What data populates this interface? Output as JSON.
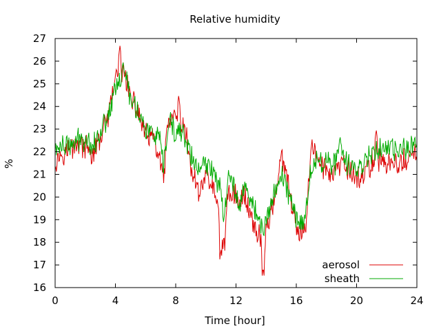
{
  "chart_data": {
    "type": "line",
    "title": "Relative humidity",
    "xlabel": "Time [hour]",
    "ylabel": "%",
    "xlim": [
      0,
      24
    ],
    "ylim": [
      16,
      27
    ],
    "xticks": [
      0,
      4,
      8,
      12,
      16,
      20,
      24
    ],
    "xtick_labels": [
      "0",
      "4",
      "8",
      "12",
      "16",
      "20",
      "24"
    ],
    "yticks": [
      16,
      17,
      18,
      19,
      20,
      21,
      22,
      23,
      24,
      25,
      26,
      27
    ],
    "ytick_labels": [
      "16",
      "17",
      "18",
      "19",
      "20",
      "21",
      "22",
      "23",
      "24",
      "25",
      "26",
      "27"
    ],
    "grid": false,
    "legend_position": "bottom-right",
    "series": [
      {
        "name": "aerosol",
        "color": "#dd0000",
        "x": [
          0,
          0.5,
          1,
          1.5,
          2,
          2.5,
          3,
          3.5,
          3.8,
          4,
          4.2,
          4.4,
          4.5,
          4.6,
          4.8,
          5,
          5.5,
          6,
          6.5,
          7,
          7.2,
          7.4,
          7.6,
          8,
          8.3,
          8.7,
          9,
          9.5,
          10,
          10.5,
          11,
          11.2,
          11.5,
          12,
          12.2,
          12.5,
          13,
          13.3,
          13.6,
          13.8,
          14,
          14.5,
          15,
          15.5,
          15.8,
          16.2,
          16.6,
          17,
          17.5,
          18,
          18.5,
          19,
          19.5,
          20,
          20.5,
          21,
          21.5,
          22,
          22.5,
          23,
          23.5,
          24
        ],
        "y": [
          21.6,
          22,
          22.1,
          22.4,
          22.2,
          21.8,
          22.6,
          23.5,
          24.4,
          25.4,
          25.2,
          25,
          25.8,
          25.6,
          25,
          24.3,
          23.8,
          22.7,
          22.6,
          21.5,
          20.5,
          22.9,
          23.4,
          23.4,
          23.2,
          22.7,
          21.3,
          20.2,
          21,
          20.4,
          18.8,
          17.7,
          20.3,
          20.1,
          19.5,
          20.2,
          19.2,
          18.5,
          18.3,
          17,
          18.5,
          19.8,
          21.7,
          20.5,
          19.2,
          18.2,
          18.6,
          22.4,
          21.5,
          21.2,
          21,
          21.4,
          21.2,
          20.8,
          21,
          21.5,
          21.7,
          21.5,
          21.4,
          21.5,
          21.7,
          22
        ],
        "peaks": [
          {
            "x": 4.3,
            "y": 26.7
          },
          {
            "x": 8.2,
            "y": 24.5
          },
          {
            "x": 11,
            "y": 17.7
          },
          {
            "x": 13.8,
            "y": 16.9
          },
          {
            "x": 21.3,
            "y": 23
          }
        ]
      },
      {
        "name": "sheath",
        "color": "#00aa00",
        "x": [
          0,
          0.5,
          1,
          1.5,
          2,
          2.5,
          3,
          3.5,
          3.8,
          4,
          4.2,
          4.4,
          4.5,
          4.6,
          4.8,
          5,
          5.5,
          6,
          6.5,
          7,
          7.2,
          7.4,
          7.6,
          8,
          8.3,
          8.7,
          9,
          9.5,
          10,
          10.5,
          11,
          11.2,
          11.5,
          12,
          12.2,
          12.5,
          13,
          13.3,
          13.6,
          13.8,
          14,
          14.5,
          15,
          15.5,
          15.8,
          16.2,
          16.6,
          17,
          17.5,
          18,
          18.5,
          19,
          19.5,
          20,
          20.5,
          21,
          21.5,
          22,
          22.5,
          23,
          23.5,
          24
        ],
        "y": [
          22.1,
          22.3,
          22.2,
          22.5,
          22.6,
          22.3,
          22.8,
          23.7,
          24.2,
          25,
          25.2,
          25.3,
          25.7,
          25.5,
          25,
          24.4,
          23.8,
          23,
          22.8,
          22.3,
          21.2,
          22.6,
          23.3,
          22.7,
          23,
          22.5,
          21.8,
          21.2,
          21.4,
          21.2,
          20.4,
          19.2,
          20.8,
          20.4,
          19.5,
          20.5,
          19.9,
          19.4,
          18.8,
          18.5,
          18.8,
          20.2,
          21,
          20.2,
          19.4,
          18.9,
          19.1,
          21.4,
          21.6,
          21.6,
          21.5,
          21.8,
          21.4,
          21.2,
          21.6,
          22,
          22.2,
          22.1,
          22,
          22.1,
          22.2,
          22.3
        ],
        "peaks": [
          {
            "x": 4.5,
            "y": 26
          },
          {
            "x": 18.9,
            "y": 22.7
          }
        ]
      }
    ]
  }
}
